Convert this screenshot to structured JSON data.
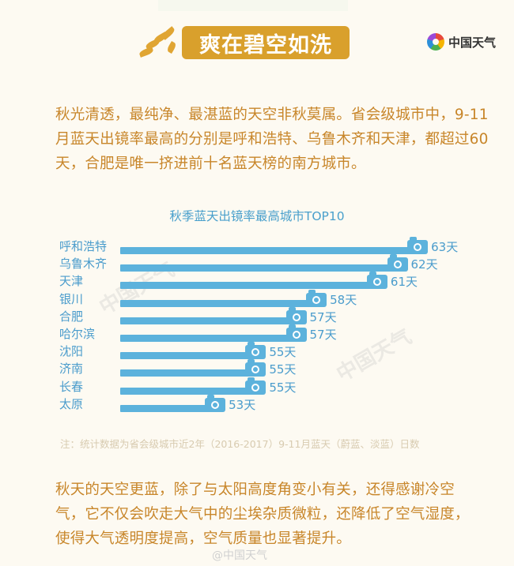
{
  "header": {
    "title": "爽在碧空如洗",
    "logo_text": "中国天气",
    "accent_color": "#d9a02c"
  },
  "intro_text": "秋光清透，最纯净、最湛蓝的天空非秋莫属。省会级城市中，9-11月蓝天出镜率最高的分别是呼和浩特、乌鲁木齐和天津，都超过60天，合肥是唯一挤进前十名蓝天榜的南方城市。",
  "chart_data": {
    "type": "bar",
    "orientation": "horizontal",
    "title": "秋季蓝天出镜率最高城市TOP10",
    "categories": [
      "呼和浩特",
      "乌鲁木齐",
      "天津",
      "银川",
      "合肥",
      "哈尔滨",
      "沈阳",
      "济南",
      "长春",
      "太原"
    ],
    "values": [
      63,
      62,
      61,
      58,
      57,
      57,
      55,
      55,
      55,
      53
    ],
    "value_labels": [
      "63天",
      "62天",
      "61天",
      "58天",
      "57天",
      "57天",
      "55天",
      "55天",
      "55天",
      "53天"
    ],
    "unit": "天",
    "xlabel": "",
    "ylabel": "",
    "grid": false,
    "legend": "none",
    "bar_color": "#5cb2dc",
    "note": "注：统计数据为省会级城市近2年（2016-2017）9-11月蓝天（蔚蓝、淡蓝）日数"
  },
  "outro_text": "秋天的天空更蓝，除了与太阳高度角变小有关，还得感谢冷空气，它不仅会吹走大气中的尘埃杂质微粒，还降低了空气湿度，使得大气透明度提高，空气质量也显著提升。",
  "watermark": {
    "text": "中国天气",
    "weibo": "@中国天气"
  }
}
